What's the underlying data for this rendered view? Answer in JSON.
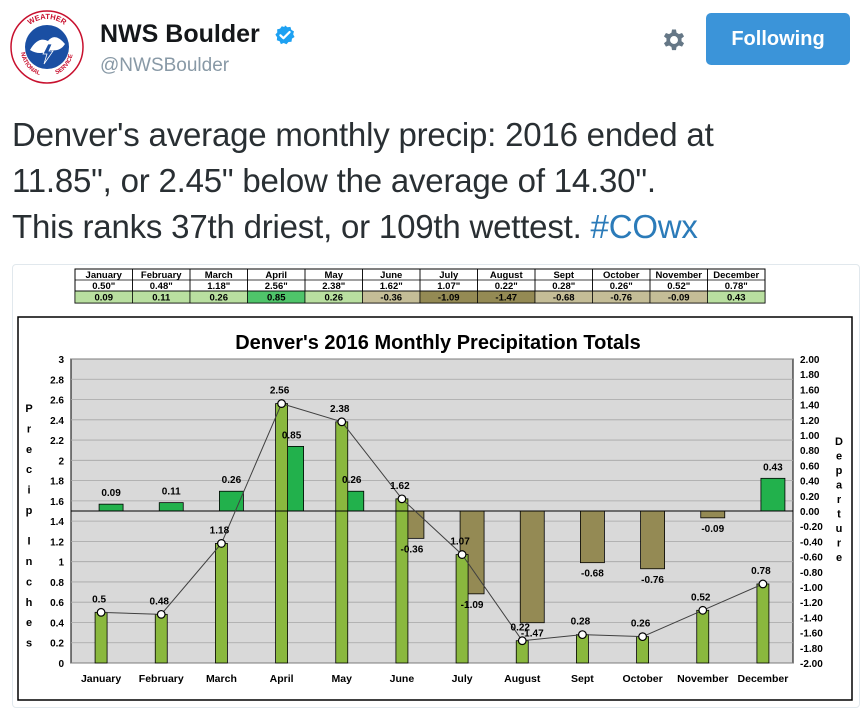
{
  "account": {
    "display_name": "NWS Boulder",
    "handle": "@NWSBoulder",
    "follow_label": "Following",
    "logo_text_top": "WEATHER",
    "logo_text_left": "NATIONAL",
    "logo_text_right": "SERVICE"
  },
  "tweet": {
    "line1": "Denver's average monthly precip: 2016 ended at",
    "line2": "11.85\", or 2.45\" below the average of 14.30\".",
    "line3_pre": "This ranks 37th driest, or 109th wettest. ",
    "hashtag": "#COwx"
  },
  "colors": {
    "follow_bg": "#3b94d9",
    "hashtag": "#2b7bb9",
    "bar_green": "#8ab83e",
    "depart_pos": "#22b14c",
    "depart_neg": "#948a54",
    "plot_bg": "#d9d9d9"
  },
  "chart_data": {
    "type": "bar",
    "title": "Denver's 2016 Monthly Precipitation Totals",
    "ylabel": "Precip Inches",
    "y2label": "Departure",
    "ylim": [
      0,
      3
    ],
    "y2lim": [
      -2,
      2
    ],
    "yticks": [
      "0",
      "0.2",
      "0.4",
      "0.6",
      "0.8",
      "1",
      "1.2",
      "1.4",
      "1.6",
      "1.8",
      "2",
      "2.2",
      "2.4",
      "2.6",
      "2.8",
      "3"
    ],
    "y2ticks": [
      "-2.00",
      "-1.80",
      "-1.60",
      "-1.40",
      "-1.20",
      "-1.00",
      "-0.80",
      "-0.60",
      "-0.40",
      "-0.20",
      "0.00",
      "0.20",
      "0.40",
      "0.60",
      "0.80",
      "1.00",
      "1.20",
      "1.40",
      "1.60",
      "1.80",
      "2.00"
    ],
    "categories": [
      "January",
      "February",
      "March",
      "April",
      "May",
      "June",
      "July",
      "August",
      "Sept",
      "October",
      "November",
      "December"
    ],
    "series": [
      {
        "values": [
          0.5,
          0.48,
          1.18,
          2.56,
          2.38,
          1.62,
          1.07,
          0.22,
          0.28,
          0.26,
          0.52,
          0.78
        ],
        "labels": [
          "0.5",
          "0.48",
          "1.18",
          "2.56",
          "2.38",
          "1.62",
          "1.07",
          "0.22",
          "0.28",
          "0.26",
          "0.52",
          "0.78"
        ]
      },
      {
        "values": [
          0.09,
          0.11,
          0.26,
          0.85,
          0.26,
          -0.36,
          -1.09,
          -1.47,
          -0.68,
          -0.76,
          -0.09,
          0.43
        ],
        "labels": [
          "0.09",
          "0.11",
          "0.26",
          "0.85",
          "0.26",
          "-0.36",
          "-1.09",
          "-1.47",
          "-0.68",
          "-0.76",
          "-0.09",
          "0.43"
        ]
      }
    ],
    "table": {
      "header": [
        "January",
        "February",
        "March",
        "April",
        "May",
        "June",
        "July",
        "August",
        "Sept",
        "October",
        "November",
        "December"
      ],
      "precip": [
        "0.50\"",
        "0.48\"",
        "1.18\"",
        "2.56\"",
        "2.38\"",
        "1.62\"",
        "1.07\"",
        "0.22\"",
        "0.28\"",
        "0.26\"",
        "0.52\"",
        "0.78\""
      ],
      "departure": [
        "0.09",
        "0.11",
        "0.26",
        "0.85",
        "0.26",
        "-0.36",
        "-1.09",
        "-1.47",
        "-0.68",
        "-0.76",
        "-0.09",
        "0.43"
      ]
    }
  }
}
